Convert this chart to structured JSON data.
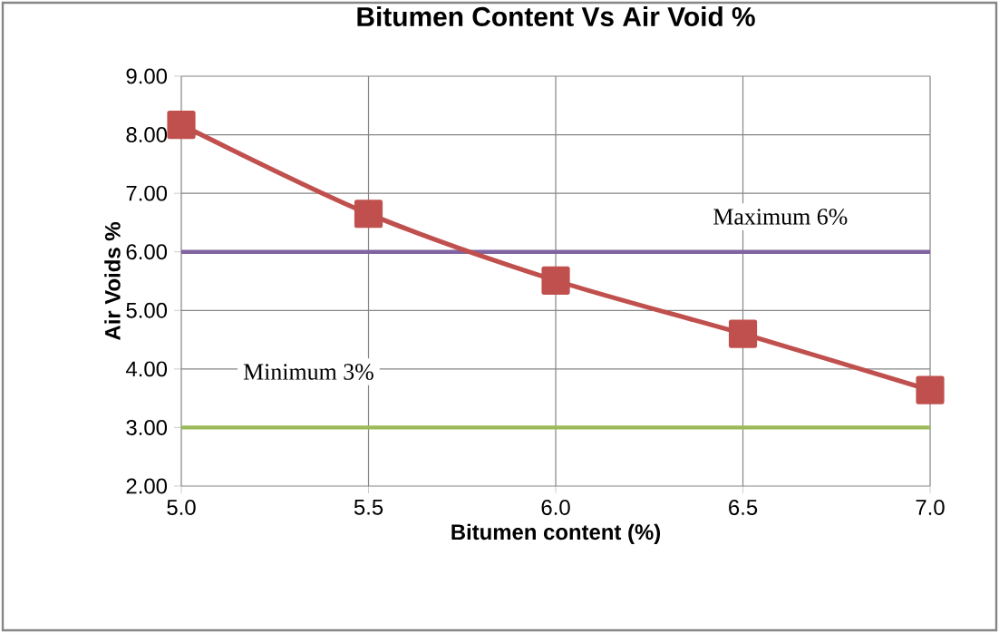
{
  "chart_data": {
    "type": "line",
    "title": "Bitumen Content Vs Air Void %",
    "xlabel": "Bitumen content (%)",
    "ylabel": "Air Voids %",
    "x": [
      5.0,
      5.5,
      6.0,
      6.5,
      7.0
    ],
    "series": [
      {
        "color": "#c0504d",
        "values": [
          8.17,
          6.65,
          5.51,
          4.6,
          3.64
        ]
      }
    ],
    "xlim": [
      5.0,
      7.0
    ],
    "xticks": [
      {
        "value": 5.0,
        "label": "5.0"
      },
      {
        "value": 5.5,
        "label": "5.5"
      },
      {
        "value": 6.0,
        "label": "6.0"
      },
      {
        "value": 6.5,
        "label": "6.5"
      },
      {
        "value": 7.0,
        "label": "7.0"
      }
    ],
    "ylim": [
      2,
      9
    ],
    "yticks": [
      {
        "value": 2,
        "label": "2.00"
      },
      {
        "value": 3,
        "label": "3.00"
      },
      {
        "value": 4,
        "label": "4.00"
      },
      {
        "value": 5,
        "label": "5.00"
      },
      {
        "value": 6,
        "label": "6.00"
      },
      {
        "value": 7,
        "label": "7.00"
      },
      {
        "value": 8,
        "label": "8.00"
      },
      {
        "value": 9,
        "label": "9.00"
      }
    ],
    "ref_lines": [
      {
        "axis": "y",
        "value": 6,
        "label": "Maximum 6%",
        "color": "#8064a2"
      },
      {
        "axis": "y",
        "value": 3,
        "label": "Minimum 3%",
        "color": "#9bbb59"
      }
    ],
    "grid": true,
    "marker": "square",
    "line_style": "solid",
    "legend": false
  }
}
